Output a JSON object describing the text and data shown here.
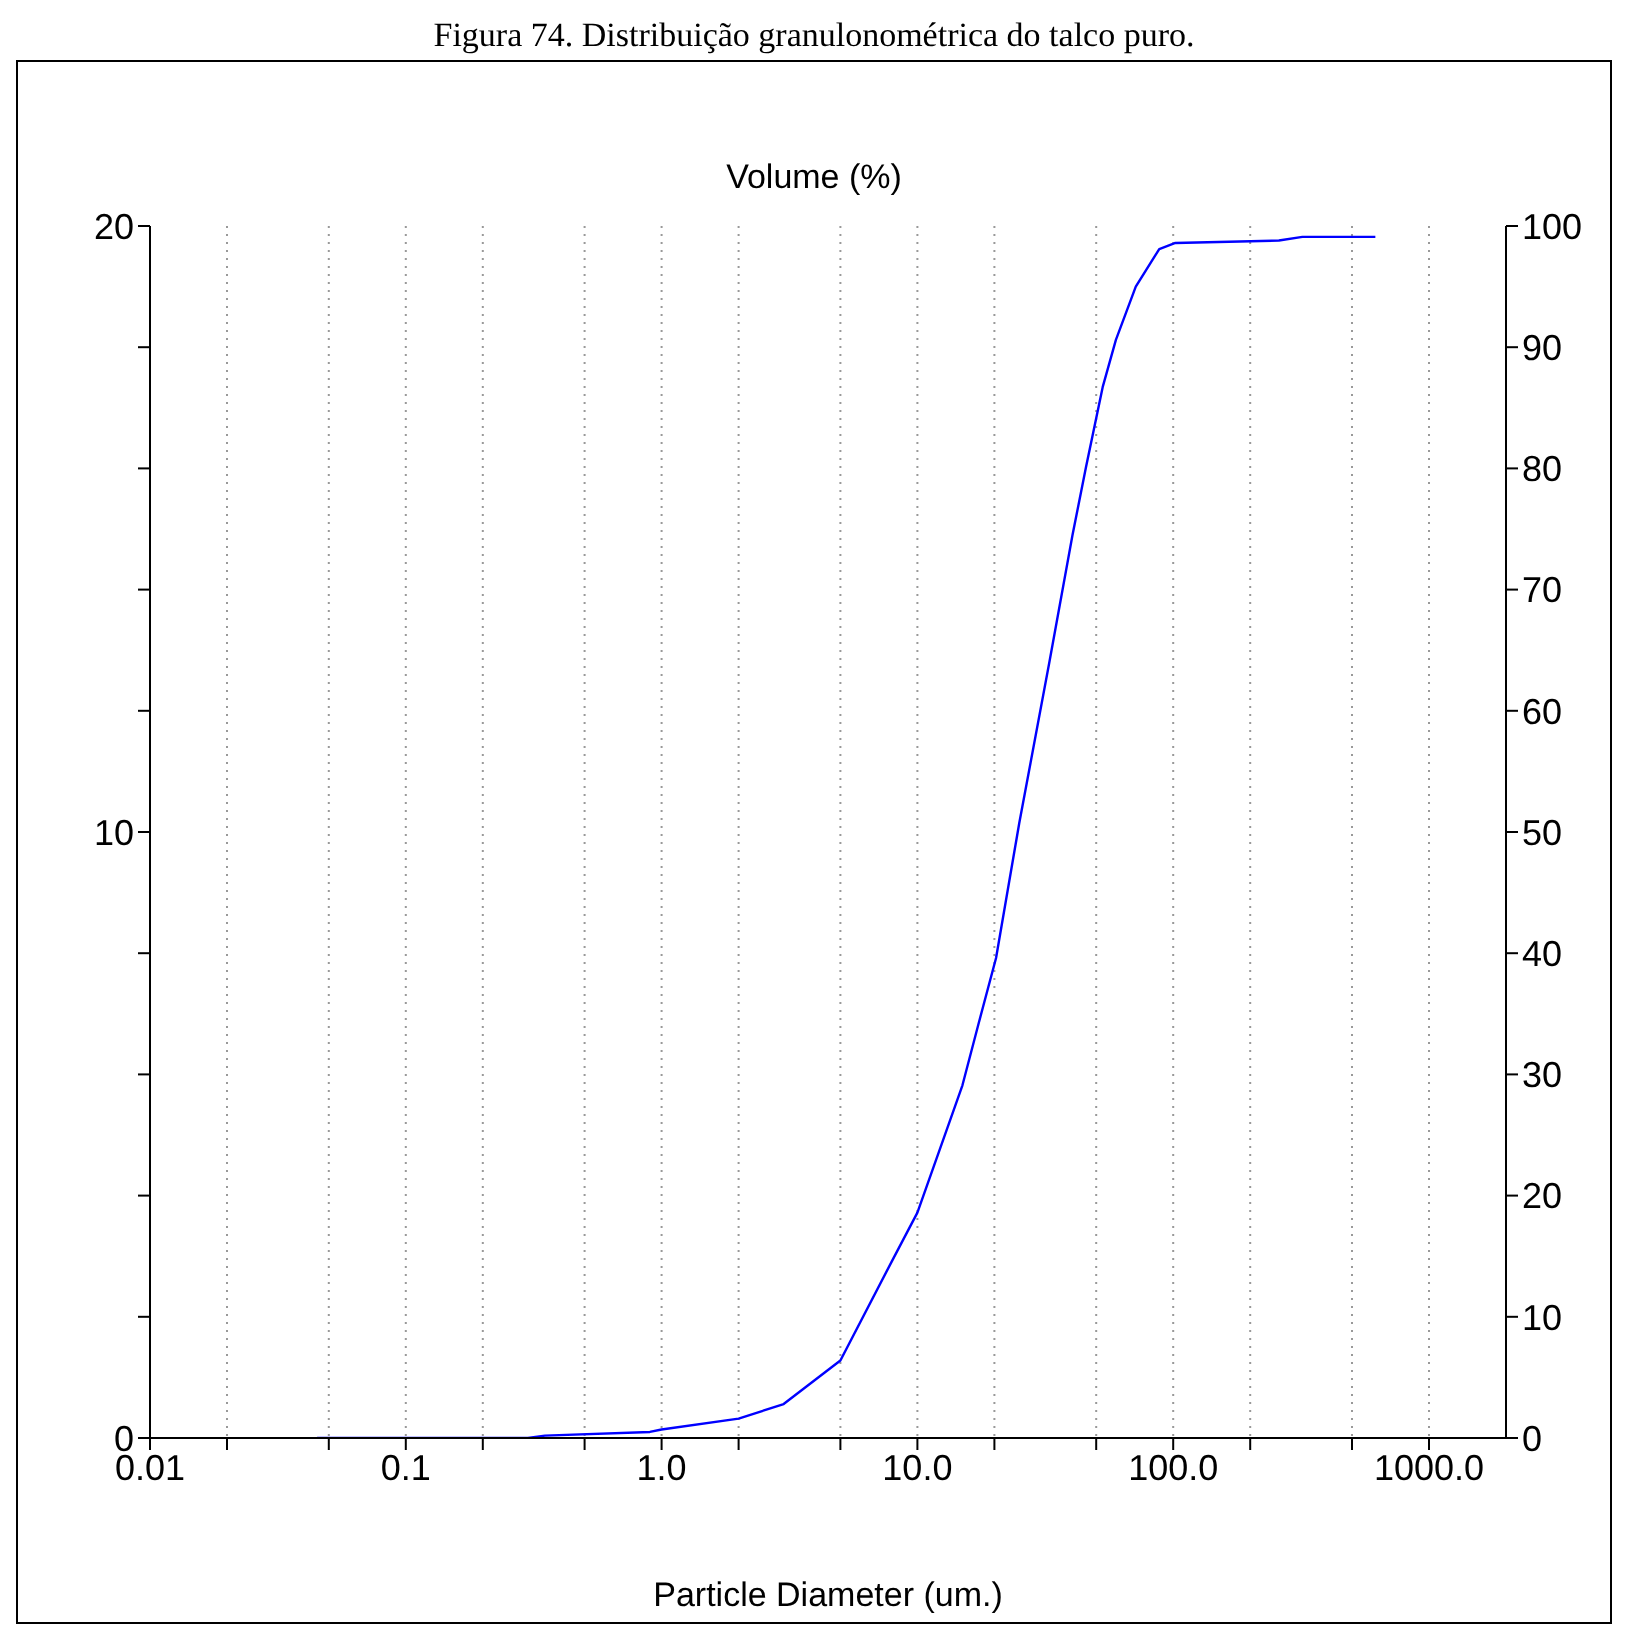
{
  "chart_data": {
    "type": "line",
    "title": "Figura 74. Distribuição granulonométrica do talco puro.",
    "ylabel": "Volume (%)",
    "xlabel": "Particle Diameter (um.)",
    "log": "x",
    "grid": "x",
    "legend": false,
    "marker": "none",
    "line_style": "solid",
    "xlim": [
      0.01,
      2000
    ],
    "xticks": [
      0.01,
      {
        "value": 0.02,
        "label": null
      },
      {
        "value": 0.05,
        "label": null
      },
      0.1,
      {
        "value": 0.2,
        "label": null
      },
      {
        "value": 0.5,
        "label": null
      },
      {
        "value": 1,
        "label": "1.0"
      },
      {
        "value": 2,
        "label": null
      },
      {
        "value": 5,
        "label": null
      },
      {
        "value": 10,
        "label": "10.0"
      },
      {
        "value": 20,
        "label": null
      },
      {
        "value": 50,
        "label": null
      },
      {
        "value": 100,
        "label": "100.0"
      },
      {
        "value": 200,
        "label": null
      },
      {
        "value": 500,
        "label": null
      },
      {
        "value": 1000,
        "label": "1000.0"
      }
    ],
    "ylim": [
      0,
      20
    ],
    "yticks": [
      0,
      {
        "value": 2,
        "label": null
      },
      {
        "value": 4,
        "label": null
      },
      {
        "value": 6,
        "label": null
      },
      {
        "value": 8,
        "label": null
      },
      10,
      {
        "value": 12,
        "label": null
      },
      {
        "value": 14,
        "label": null
      },
      {
        "value": 16,
        "label": null
      },
      {
        "value": 18,
        "label": null
      },
      20
    ],
    "y2lim": [
      0,
      100
    ],
    "y2ticks": [
      0,
      10,
      20,
      30,
      40,
      50,
      60,
      70,
      80,
      90,
      100
    ],
    "series": [
      {
        "color": "#0000ff",
        "axis": "y2",
        "x": [
          0.045,
          0.1,
          0.3,
          0.35,
          0.9,
          1.0,
          2.0,
          3.0,
          5.0,
          8.0,
          10.0,
          15.0,
          17.3,
          20.3,
          25,
          32.8,
          40.4,
          45.6,
          53,
          59.7,
          71.4,
          88.2,
          102,
          259,
          320,
          617
        ],
        "values": [
          0,
          0,
          0,
          0.2,
          0.5,
          0.7,
          1.6,
          2.8,
          6.4,
          14.7,
          18.6,
          29.1,
          34.1,
          39.6,
          50.7,
          64.0,
          74.5,
          80.1,
          86.7,
          90.6,
          95.0,
          98.1,
          98.6,
          98.8,
          99.1,
          99.1
        ]
      }
    ]
  }
}
